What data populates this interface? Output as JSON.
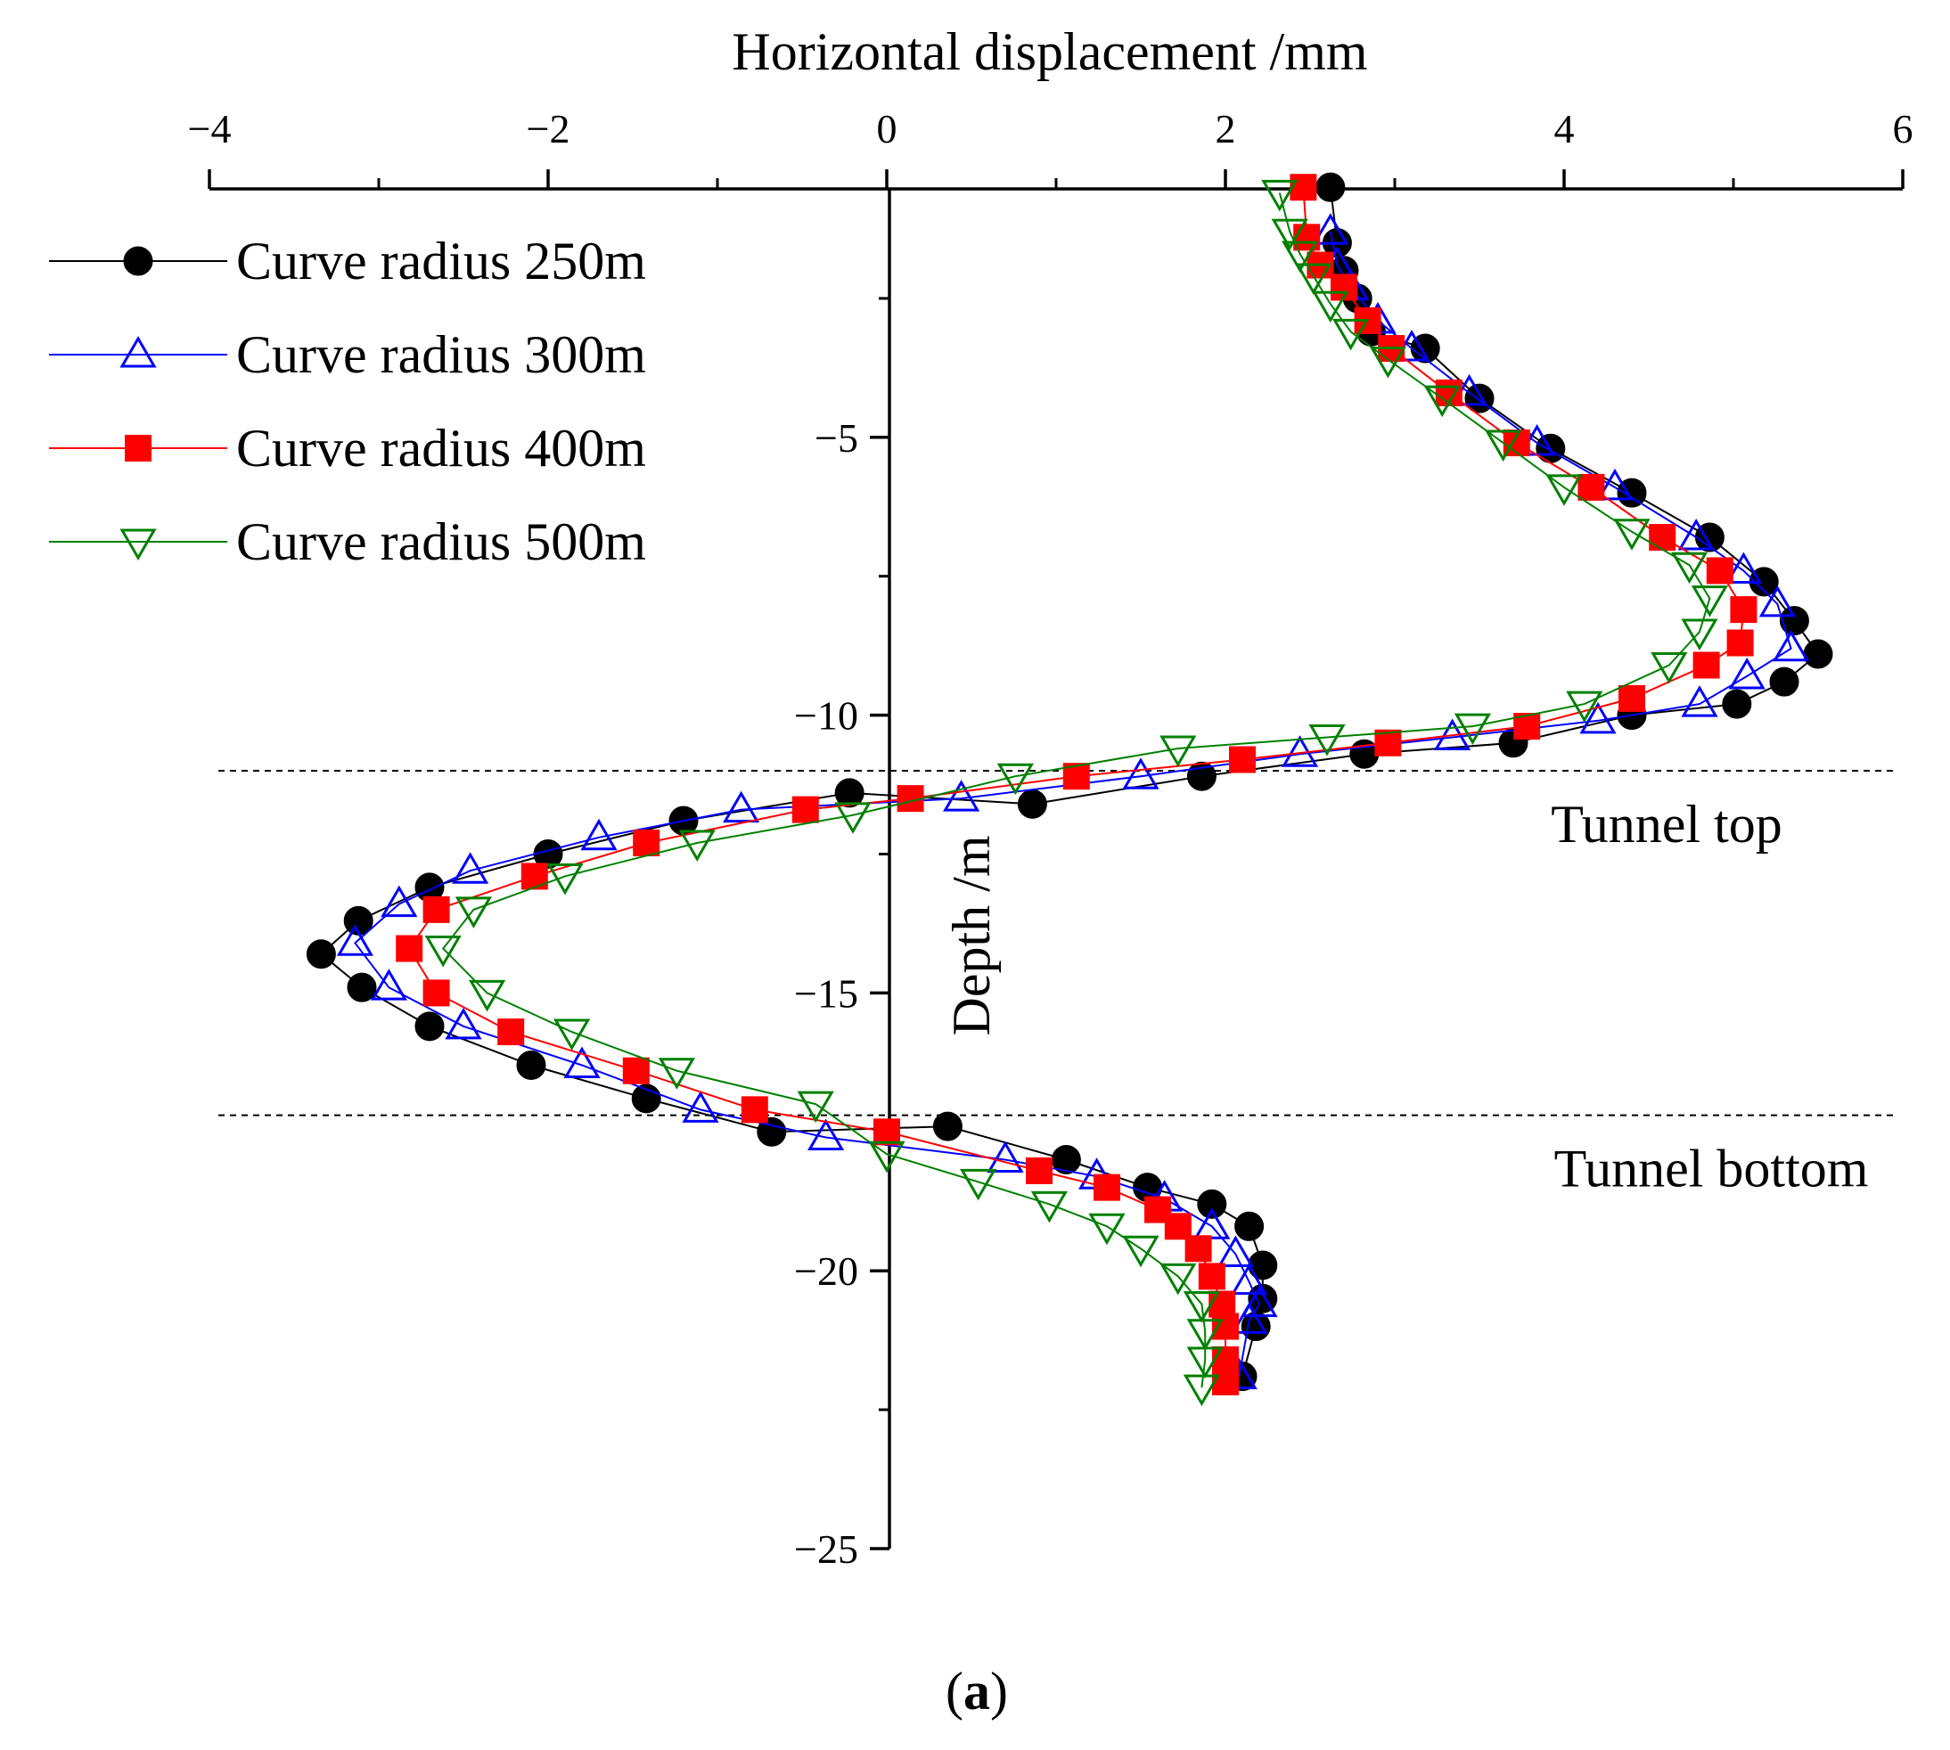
{
  "chart_data": {
    "type": "line",
    "title": "",
    "xlabel": "Horizontal displacement /mm",
    "ylabel": "Depth /m",
    "xlim": [
      -4,
      6
    ],
    "ylim": [
      -25,
      -0.5
    ],
    "xticks": [
      -4,
      -2,
      0,
      2,
      4,
      6
    ],
    "xtick_labels": [
      "−4",
      "−2",
      "0",
      "2",
      "4",
      "6"
    ],
    "yticks": [
      -5,
      -10,
      -15,
      -20,
      -25
    ],
    "ytick_labels": [
      "−5",
      "−10",
      "−15",
      "−20",
      "−25"
    ],
    "legend_position": "top-left",
    "reference_lines": [
      {
        "label": "Tunnel top",
        "y": -11.0
      },
      {
        "label": "Tunnel bottom",
        "y": -17.2
      }
    ],
    "caption": "(a)",
    "series": [
      {
        "name": "Curve radius 250m",
        "color": "#000000",
        "marker": "circle",
        "points": [
          [
            2.62,
            -0.5
          ],
          [
            2.66,
            -1.5
          ],
          [
            2.7,
            -2.0
          ],
          [
            2.78,
            -2.5
          ],
          [
            2.86,
            -3.1
          ],
          [
            3.18,
            -3.4
          ],
          [
            3.5,
            -4.3
          ],
          [
            3.92,
            -5.2
          ],
          [
            4.4,
            -6.0
          ],
          [
            4.86,
            -6.8
          ],
          [
            5.18,
            -7.6
          ],
          [
            5.36,
            -8.3
          ],
          [
            5.5,
            -8.9
          ],
          [
            5.3,
            -9.4
          ],
          [
            5.02,
            -9.8
          ],
          [
            4.4,
            -10.0
          ],
          [
            3.7,
            -10.5
          ],
          [
            2.82,
            -10.7
          ],
          [
            1.86,
            -11.1
          ],
          [
            0.86,
            -11.6
          ],
          [
            -0.22,
            -11.4
          ],
          [
            -1.2,
            -11.9
          ],
          [
            -2.0,
            -12.5
          ],
          [
            -2.7,
            -13.1
          ],
          [
            -3.12,
            -13.7
          ],
          [
            -3.34,
            -14.3
          ],
          [
            -3.1,
            -14.9
          ],
          [
            -2.7,
            -15.6
          ],
          [
            -2.1,
            -16.3
          ],
          [
            -1.42,
            -16.9
          ],
          [
            -0.68,
            -17.5
          ],
          [
            0.36,
            -17.4
          ],
          [
            1.06,
            -18.0
          ],
          [
            1.54,
            -18.5
          ],
          [
            1.92,
            -18.8
          ],
          [
            2.14,
            -19.2
          ],
          [
            2.22,
            -19.9
          ],
          [
            2.22,
            -20.5
          ],
          [
            2.18,
            -21.0
          ],
          [
            2.1,
            -21.9
          ]
        ]
      },
      {
        "name": "Curve radius 300m",
        "color": "#0000ff",
        "marker": "triangle-up",
        "points": [
          [
            2.62,
            -1.3
          ],
          [
            2.66,
            -1.9
          ],
          [
            2.74,
            -2.3
          ],
          [
            2.9,
            -2.9
          ],
          [
            3.1,
            -3.4
          ],
          [
            3.44,
            -4.2
          ],
          [
            3.84,
            -5.1
          ],
          [
            4.3,
            -5.9
          ],
          [
            4.78,
            -6.8
          ],
          [
            5.06,
            -7.4
          ],
          [
            5.26,
            -8.0
          ],
          [
            5.34,
            -8.8
          ],
          [
            5.08,
            -9.3
          ],
          [
            4.8,
            -9.8
          ],
          [
            4.2,
            -10.1
          ],
          [
            3.34,
            -10.4
          ],
          [
            2.44,
            -10.7
          ],
          [
            1.5,
            -11.1
          ],
          [
            0.44,
            -11.5
          ],
          [
            -0.86,
            -11.7
          ],
          [
            -1.7,
            -12.2
          ],
          [
            -2.46,
            -12.8
          ],
          [
            -2.88,
            -13.4
          ],
          [
            -3.14,
            -14.1
          ],
          [
            -2.94,
            -14.9
          ],
          [
            -2.5,
            -15.6
          ],
          [
            -1.8,
            -16.3
          ],
          [
            -1.1,
            -17.1
          ],
          [
            -0.36,
            -17.6
          ],
          [
            0.7,
            -18.0
          ],
          [
            1.24,
            -18.3
          ],
          [
            1.64,
            -18.7
          ],
          [
            1.92,
            -19.2
          ],
          [
            2.06,
            -19.7
          ],
          [
            2.14,
            -20.2
          ],
          [
            2.2,
            -20.6
          ],
          [
            2.14,
            -20.9
          ],
          [
            2.08,
            -21.9
          ]
        ]
      },
      {
        "name": "Curve radius 400m",
        "color": "#ff0000",
        "marker": "square",
        "points": [
          [
            2.46,
            -0.5
          ],
          [
            2.48,
            -1.4
          ],
          [
            2.56,
            -1.9
          ],
          [
            2.7,
            -2.3
          ],
          [
            2.84,
            -2.9
          ],
          [
            2.98,
            -3.4
          ],
          [
            3.32,
            -4.2
          ],
          [
            3.72,
            -5.1
          ],
          [
            4.16,
            -5.9
          ],
          [
            4.58,
            -6.8
          ],
          [
            4.92,
            -7.4
          ],
          [
            5.06,
            -8.1
          ],
          [
            5.04,
            -8.7
          ],
          [
            4.84,
            -9.1
          ],
          [
            4.4,
            -9.7
          ],
          [
            3.78,
            -10.2
          ],
          [
            2.96,
            -10.5
          ],
          [
            2.1,
            -10.8
          ],
          [
            1.12,
            -11.1
          ],
          [
            0.14,
            -11.5
          ],
          [
            -0.48,
            -11.7
          ],
          [
            -1.42,
            -12.3
          ],
          [
            -2.08,
            -12.9
          ],
          [
            -2.66,
            -13.5
          ],
          [
            -2.82,
            -14.2
          ],
          [
            -2.66,
            -15.0
          ],
          [
            -2.22,
            -15.7
          ],
          [
            -1.48,
            -16.4
          ],
          [
            -0.78,
            -17.1
          ],
          [
            0.0,
            -17.5
          ],
          [
            0.9,
            -18.2
          ],
          [
            1.3,
            -18.5
          ],
          [
            1.6,
            -18.9
          ],
          [
            1.72,
            -19.2
          ],
          [
            1.84,
            -19.6
          ],
          [
            1.92,
            -20.1
          ],
          [
            1.98,
            -20.6
          ],
          [
            2.0,
            -21.0
          ],
          [
            2.0,
            -21.6
          ],
          [
            2.0,
            -22.0
          ]
        ]
      },
      {
        "name": "Curve radius 500m",
        "color": "#008000",
        "marker": "triangle-down",
        "points": [
          [
            2.32,
            -0.6
          ],
          [
            2.38,
            -1.3
          ],
          [
            2.44,
            -1.7
          ],
          [
            2.52,
            -2.1
          ],
          [
            2.62,
            -2.6
          ],
          [
            2.74,
            -3.1
          ],
          [
            2.96,
            -3.6
          ],
          [
            3.28,
            -4.3
          ],
          [
            3.64,
            -5.1
          ],
          [
            4.0,
            -5.9
          ],
          [
            4.4,
            -6.7
          ],
          [
            4.74,
            -7.3
          ],
          [
            4.86,
            -7.9
          ],
          [
            4.8,
            -8.5
          ],
          [
            4.62,
            -9.1
          ],
          [
            4.12,
            -9.8
          ],
          [
            3.46,
            -10.2
          ],
          [
            2.6,
            -10.4
          ],
          [
            1.72,
            -10.6
          ],
          [
            0.76,
            -11.1
          ],
          [
            -0.2,
            -11.8
          ],
          [
            -1.12,
            -12.3
          ],
          [
            -1.9,
            -12.9
          ],
          [
            -2.44,
            -13.5
          ],
          [
            -2.62,
            -14.2
          ],
          [
            -2.36,
            -15.0
          ],
          [
            -1.86,
            -15.7
          ],
          [
            -1.24,
            -16.4
          ],
          [
            -0.42,
            -17.0
          ],
          [
            0.0,
            -17.9
          ],
          [
            0.54,
            -18.4
          ],
          [
            0.96,
            -18.8
          ],
          [
            1.3,
            -19.2
          ],
          [
            1.5,
            -19.6
          ],
          [
            1.72,
            -20.1
          ],
          [
            1.86,
            -20.6
          ],
          [
            1.88,
            -21.1
          ],
          [
            1.88,
            -21.6
          ],
          [
            1.86,
            -22.1
          ]
        ]
      }
    ]
  }
}
